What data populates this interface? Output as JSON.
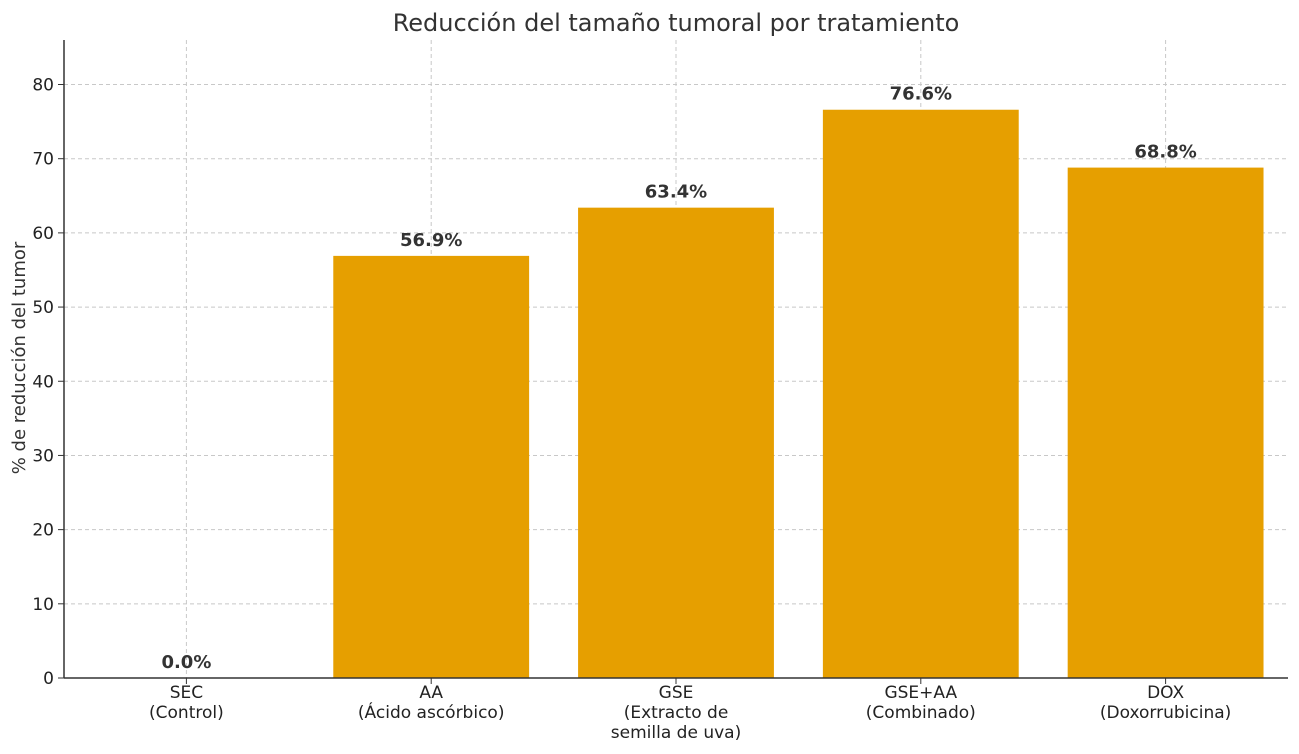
{
  "chart_data": {
    "type": "bar",
    "title": "Reducción del tamaño tumoral por tratamiento",
    "xlabel": "",
    "ylabel": "% de reducción del tumor",
    "categories": [
      [
        "SEC",
        "(Control)"
      ],
      [
        "AA",
        "(Ácido ascórbico)"
      ],
      [
        "GSE",
        "(Extracto de",
        "semilla de uva)"
      ],
      [
        "GSE+AA",
        "(Combinado)"
      ],
      [
        "DOX",
        "(Doxorrubicina)"
      ]
    ],
    "values": [
      0.0,
      56.9,
      63.4,
      76.6,
      68.8
    ],
    "data_labels": [
      "0.0%",
      "56.9%",
      "63.4%",
      "76.6%",
      "68.8%"
    ],
    "ylim": [
      0,
      86
    ],
    "yticks": [
      0,
      10,
      20,
      30,
      40,
      50,
      60,
      70,
      80
    ],
    "grid": true,
    "bar_color": "#E69F00"
  }
}
